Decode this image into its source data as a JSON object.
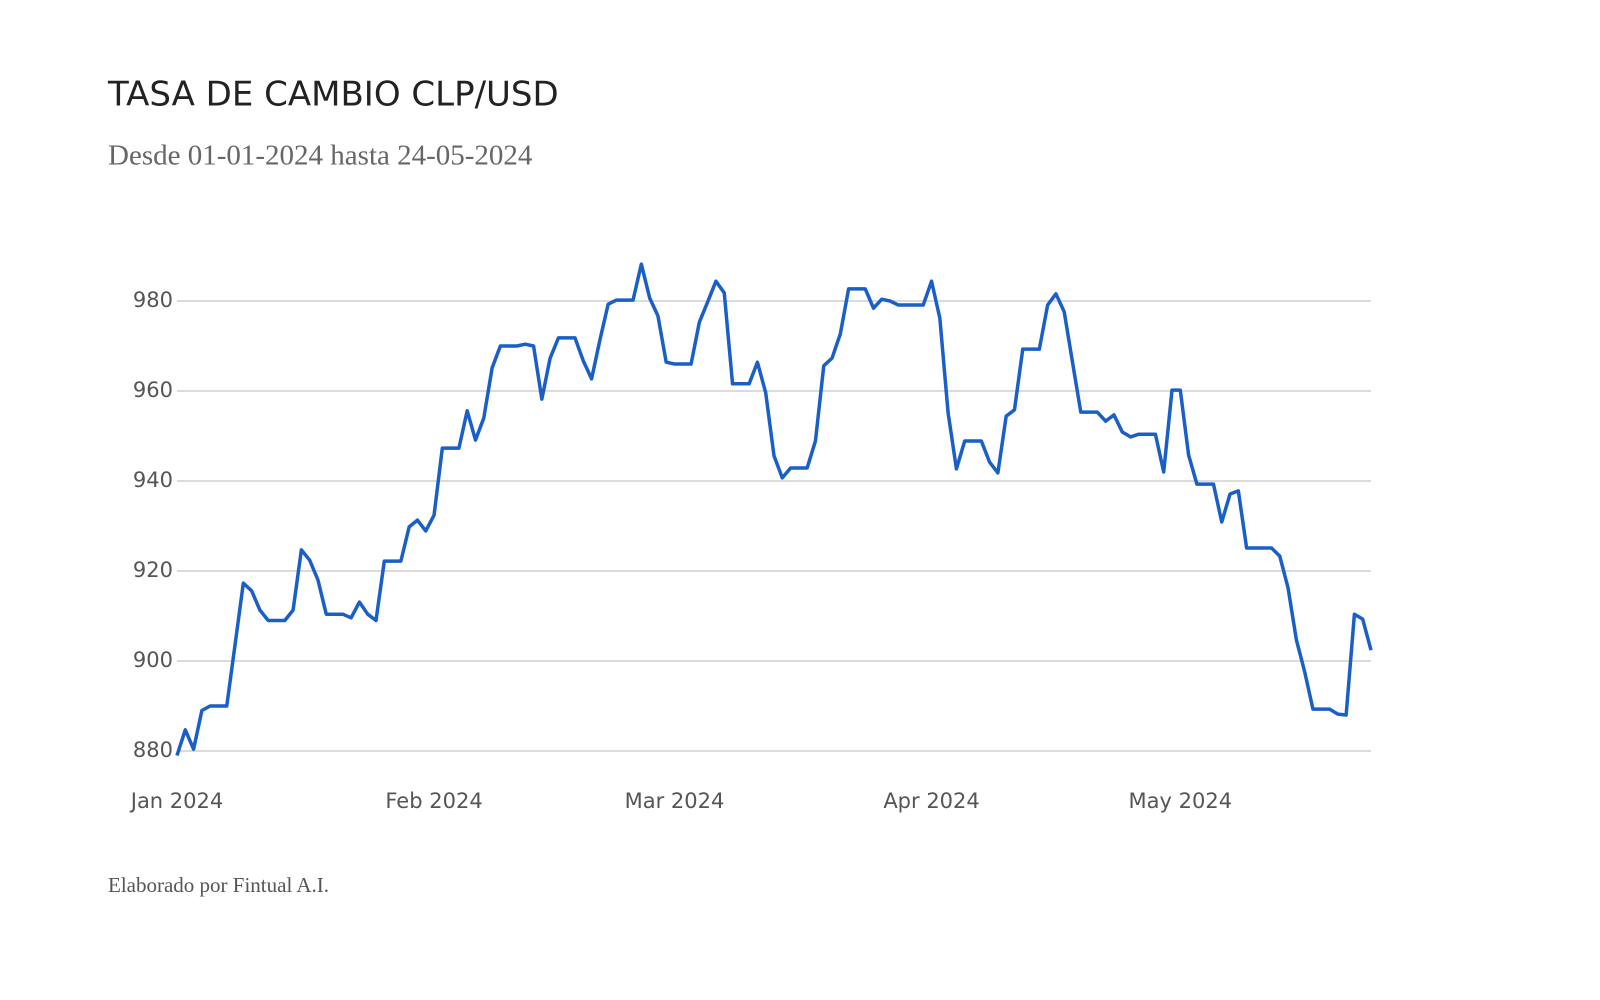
{
  "chart_data": {
    "type": "line",
    "title": "TASA DE CAMBIO CLP/USD",
    "subtitle": "Desde 01-01-2024 hasta 24-05-2024",
    "footer": "Elaborado por Fintual A.I.",
    "xlim": [
      0,
      144
    ],
    "xticks": [
      {
        "value": 0,
        "label": "Jan 2024"
      },
      {
        "value": 31,
        "label": "Feb 2024"
      },
      {
        "value": 60,
        "label": "Mar 2024"
      },
      {
        "value": 91,
        "label": "Apr 2024"
      },
      {
        "value": 121,
        "label": "May 2024"
      }
    ],
    "ylim": [
      880,
      990
    ],
    "yticks": [
      880,
      900,
      920,
      940,
      960,
      980
    ],
    "grid": true,
    "series": [
      {
        "color": "#1a5fc8",
        "x": [
          0,
          1,
          2,
          3,
          4,
          6,
          7,
          8,
          9,
          10,
          11,
          13,
          14,
          15,
          16,
          17,
          18,
          20,
          21,
          22,
          23,
          24,
          25,
          27,
          28,
          29,
          30,
          31,
          32,
          34,
          35,
          36,
          37,
          38,
          39,
          41,
          42,
          43,
          44,
          45,
          46,
          48,
          49,
          50,
          51,
          52,
          53,
          55,
          56,
          57,
          58,
          59,
          60,
          62,
          63,
          64,
          65,
          66,
          67,
          69,
          70,
          71,
          72,
          73,
          74,
          76,
          77,
          78,
          79,
          80,
          81,
          83,
          84,
          85,
          86,
          87,
          90,
          91,
          92,
          93,
          94,
          95,
          97,
          98,
          99,
          100,
          101,
          102,
          104,
          105,
          106,
          107,
          108,
          109,
          111,
          112,
          113,
          114,
          115,
          116,
          118,
          119,
          120,
          121,
          122,
          123,
          125,
          126,
          127,
          128,
          129,
          132,
          133,
          134,
          135,
          136,
          137,
          139,
          140,
          141,
          142,
          143,
          144
        ],
        "values": [
          879,
          884.7,
          880.4,
          889,
          890,
          890,
          903.6,
          917.3,
          915.6,
          911.3,
          909,
          909,
          911.3,
          924.7,
          922.4,
          918,
          910.4,
          910.4,
          909.6,
          913.1,
          910.4,
          909,
          922.2,
          922.2,
          929.8,
          931.3,
          928.9,
          932.4,
          947.3,
          947.3,
          955.6,
          949.1,
          954,
          965.1,
          970,
          970,
          970.4,
          970,
          958.2,
          967.3,
          971.8,
          971.8,
          966.7,
          962.7,
          971.3,
          979.3,
          980.2,
          980.2,
          988.2,
          980.7,
          976.7,
          966.4,
          966,
          966,
          975.3,
          979.8,
          984.4,
          981.8,
          961.6,
          961.6,
          966.4,
          959.6,
          945.6,
          940.7,
          942.9,
          942.9,
          948.9,
          965.6,
          967.3,
          972.7,
          982.7,
          982.7,
          978.4,
          980.4,
          980,
          979.1,
          979.1,
          984.4,
          976.2,
          955.1,
          942.7,
          948.9,
          948.9,
          944.2,
          941.8,
          954.4,
          955.8,
          969.3,
          969.3,
          979.1,
          981.6,
          977.6,
          966.4,
          955.3,
          955.3,
          953.3,
          954.7,
          950.9,
          949.8,
          950.4,
          950.4,
          942,
          960.2,
          960.2,
          945.8,
          939.3,
          939.3,
          930.9,
          937.1,
          937.8,
          925.1,
          925.1,
          923.3,
          916.2,
          904.7,
          897.6,
          889.3,
          889.3,
          888.2,
          888,
          910.4,
          909.3,
          902.4
        ]
      }
    ]
  }
}
